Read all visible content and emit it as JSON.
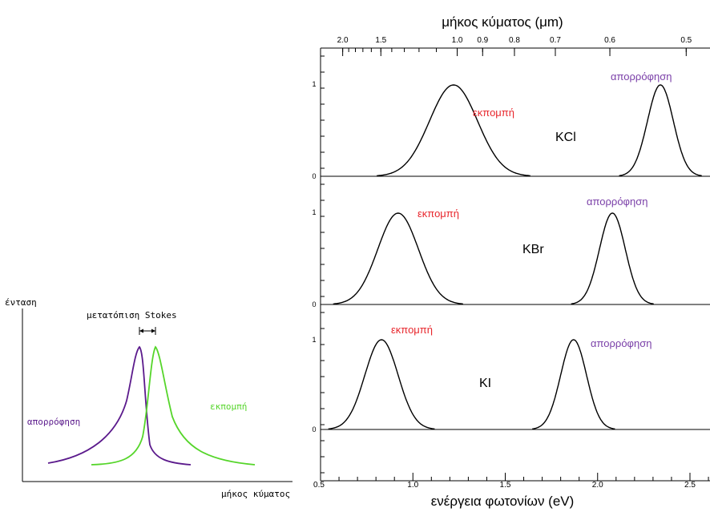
{
  "stokes": {
    "y_label": "ένταση",
    "x_label": "μήκος κύματος",
    "shift_label": "μετατόπιση Stokes",
    "absorption_label": "απορρόφηση",
    "emission_label": "εκπομπή",
    "absorption_color": "#5b1a8c",
    "emission_color": "#55d52a"
  },
  "spectra": {
    "top_axis_title": "μήκος κύματος (μm)",
    "top_tick_labels": [
      "2.0",
      "1.5",
      "1.0",
      "0.9",
      "0.8",
      "0.7",
      "0.6",
      "0.5"
    ],
    "top_tick_values": [
      2.0,
      1.5,
      1.0,
      0.9,
      0.8,
      0.7,
      0.6,
      0.5
    ],
    "bottom_axis_title": "ενέργεια φωτονίων (eV)",
    "bottom_tick_labels": [
      "0.5",
      "1.0",
      "1.5",
      "2.0",
      "2.5"
    ],
    "bottom_tick_values": [
      0.5,
      1.0,
      1.5,
      2.0,
      2.5
    ],
    "x_range_ev": [
      0.5,
      2.6
    ],
    "y_tick_one": "1",
    "y_tick_zero": "0",
    "emission_label": "εκπομπή",
    "absorption_label": "απορρόφηση",
    "emission_color": "#e8262c",
    "absorption_color": "#7a3fa8",
    "panels": [
      {
        "crystal": "KCl",
        "emission_peak_ev": 1.22,
        "absorption_peak_ev": 2.34
      },
      {
        "crystal": "KBr",
        "emission_peak_ev": 0.92,
        "absorption_peak_ev": 2.08
      },
      {
        "crystal": "KI",
        "emission_peak_ev": 0.83,
        "absorption_peak_ev": 1.87
      }
    ]
  }
}
